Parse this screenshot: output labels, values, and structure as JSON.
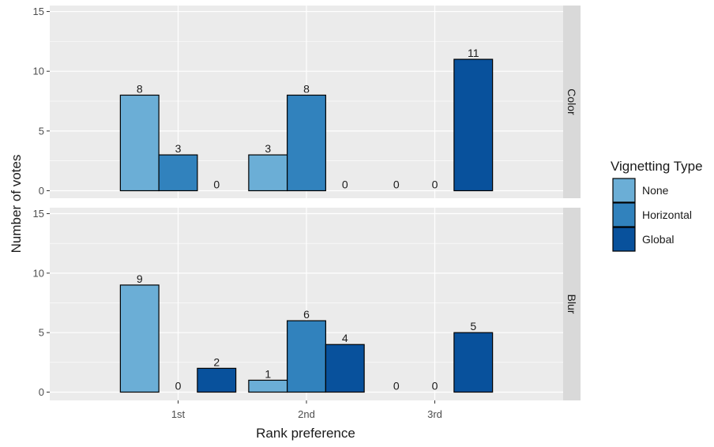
{
  "chart_data": {
    "type": "bar",
    "xlabel": "Rank preference",
    "ylabel": "Number of votes",
    "categories": [
      "1st",
      "2nd",
      "3rd"
    ],
    "ylim": [
      -1,
      15.5
    ],
    "yticks": [
      0,
      5,
      10,
      15
    ],
    "grid": true,
    "legend": {
      "title": "Vignetting Type",
      "placement": "right",
      "entries": [
        "None",
        "Horizontal",
        "Global"
      ]
    },
    "colors": {
      "None": "#6baed6",
      "Horizontal": "#3182bd",
      "Global": "#08519c",
      "panel_bg": "#ebebeb",
      "strip_bg": "#d9d9d9",
      "grid": "#ffffff"
    },
    "panels": [
      {
        "strip": "Color",
        "series": [
          {
            "name": "None",
            "values": [
              8,
              3,
              0
            ]
          },
          {
            "name": "Horizontal",
            "values": [
              3,
              8,
              0
            ]
          },
          {
            "name": "Global",
            "values": [
              0,
              0,
              11
            ]
          }
        ]
      },
      {
        "strip": "Blur",
        "series": [
          {
            "name": "None",
            "values": [
              9,
              1,
              0
            ]
          },
          {
            "name": "Horizontal",
            "values": [
              0,
              6,
              0
            ]
          },
          {
            "name": "Global",
            "values": [
              2,
              4,
              5
            ]
          }
        ]
      }
    ]
  }
}
